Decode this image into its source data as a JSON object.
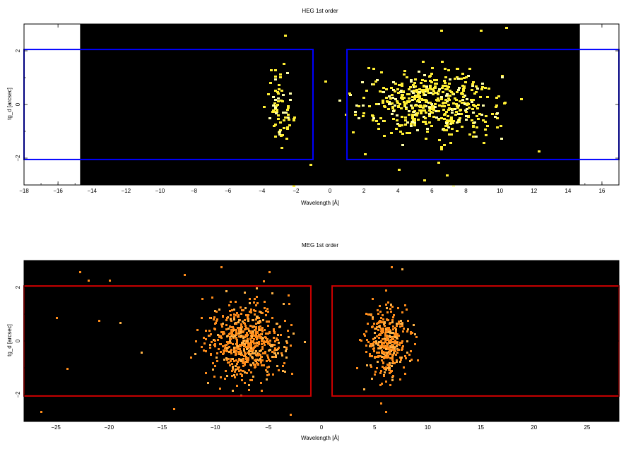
{
  "chart_data": [
    {
      "type": "scatter",
      "title": "HEG 1st order",
      "xlabel": "Wavelength [Å]",
      "ylabel": "tg_d [arcsec]",
      "xlim": [
        -18,
        17
      ],
      "ylim": [
        -3.0,
        3.0
      ],
      "xticks": [
        -18,
        -16,
        -14,
        -12,
        -10,
        -8,
        -6,
        -4,
        -2,
        0,
        2,
        4,
        6,
        8,
        10,
        12,
        14,
        16
      ],
      "xtick_labels": [
        "−18",
        "−16",
        "−14",
        "−12",
        "−10",
        "−8",
        "−6",
        "−4",
        "−2",
        "0",
        "2",
        "4",
        "6",
        "8",
        "10",
        "12",
        "14",
        "16"
      ],
      "yticks": [
        -2,
        0,
        2
      ],
      "ytick_labels": [
        "−2",
        "0",
        "2"
      ],
      "grid": false,
      "background_image_range": [
        -14.7,
        14.7
      ],
      "image_color": "#000000",
      "event_color": "#ffee33",
      "extraction_region_color": "#0000ff",
      "extraction_regions": [
        {
          "x": [
            -18,
            -1.0
          ],
          "y": [
            -2.05,
            2.05
          ]
        },
        {
          "x": [
            1.0,
            17
          ],
          "y": [
            -2.05,
            2.05
          ]
        }
      ],
      "series": [
        {
          "clusters": [
            {
              "center": [
                -3.0,
                -0.1
              ],
              "spread": [
                0.55,
                0.9
              ],
              "count": 70
            },
            {
              "center": [
                5.8,
                0.0
              ],
              "spread": [
                2.6,
                0.85
              ],
              "count": 520
            }
          ],
          "outliers": [
            [
              -2.7,
              2.6
            ],
            [
              -1.2,
              -2.2
            ],
            [
              -2.2,
              -3.0
            ],
            [
              6.5,
              2.8
            ],
            [
              8.8,
              2.8
            ],
            [
              10.3,
              2.9
            ],
            [
              4.0,
              -2.4
            ],
            [
              5.5,
              -2.8
            ],
            [
              6.8,
              -2.6
            ],
            [
              7.2,
              -3.0
            ],
            [
              12.2,
              -1.7
            ]
          ]
        }
      ]
    },
    {
      "type": "scatter",
      "title": "MEG 1st order",
      "xlabel": "Wavelength [Å]",
      "ylabel": "tg_d [arcsec]",
      "xlim": [
        -28,
        28
      ],
      "ylim": [
        -3.0,
        3.0
      ],
      "xticks": [
        -25,
        -20,
        -15,
        -10,
        -5,
        0,
        5,
        10,
        15,
        20,
        25
      ],
      "xtick_labels": [
        "−25",
        "−20",
        "−15",
        "−10",
        "−5",
        "0",
        "5",
        "10",
        "15",
        "20",
        "25"
      ],
      "yticks": [
        -2,
        0,
        2
      ],
      "ytick_labels": [
        "−2",
        "0",
        "2"
      ],
      "grid": false,
      "background_image_range": [
        -28,
        28
      ],
      "image_color": "#000000",
      "event_color": "#ff8c1a",
      "extraction_region_color": "#cc0000",
      "extraction_regions": [
        {
          "x": [
            -28,
            -1.0
          ],
          "y": [
            -2.05,
            2.05
          ]
        },
        {
          "x": [
            1.0,
            28
          ],
          "y": [
            -2.05,
            2.05
          ]
        }
      ],
      "series": [
        {
          "clusters": [
            {
              "center": [
                -7.2,
                0.0
              ],
              "spread": [
                2.4,
                0.95
              ],
              "count": 650
            },
            {
              "center": [
                6.2,
                0.0
              ],
              "spread": [
                1.3,
                0.85
              ],
              "count": 380
            }
          ],
          "outliers": [
            [
              -26.5,
              -2.6
            ],
            [
              -22.8,
              2.6
            ],
            [
              -22.0,
              2.3
            ],
            [
              -20.0,
              2.3
            ],
            [
              -25.0,
              0.9
            ],
            [
              -21.0,
              0.8
            ],
            [
              -19.0,
              0.7
            ],
            [
              -14.0,
              -2.5
            ],
            [
              -13.0,
              2.5
            ],
            [
              -24.0,
              -1.0
            ],
            [
              -17.0,
              -0.4
            ],
            [
              -9.5,
              2.8
            ],
            [
              -5.0,
              2.6
            ],
            [
              -3.0,
              -2.7
            ],
            [
              6.5,
              2.8
            ],
            [
              6.0,
              -2.6
            ],
            [
              5.5,
              -2.3
            ],
            [
              7.5,
              2.7
            ]
          ]
        }
      ]
    }
  ]
}
